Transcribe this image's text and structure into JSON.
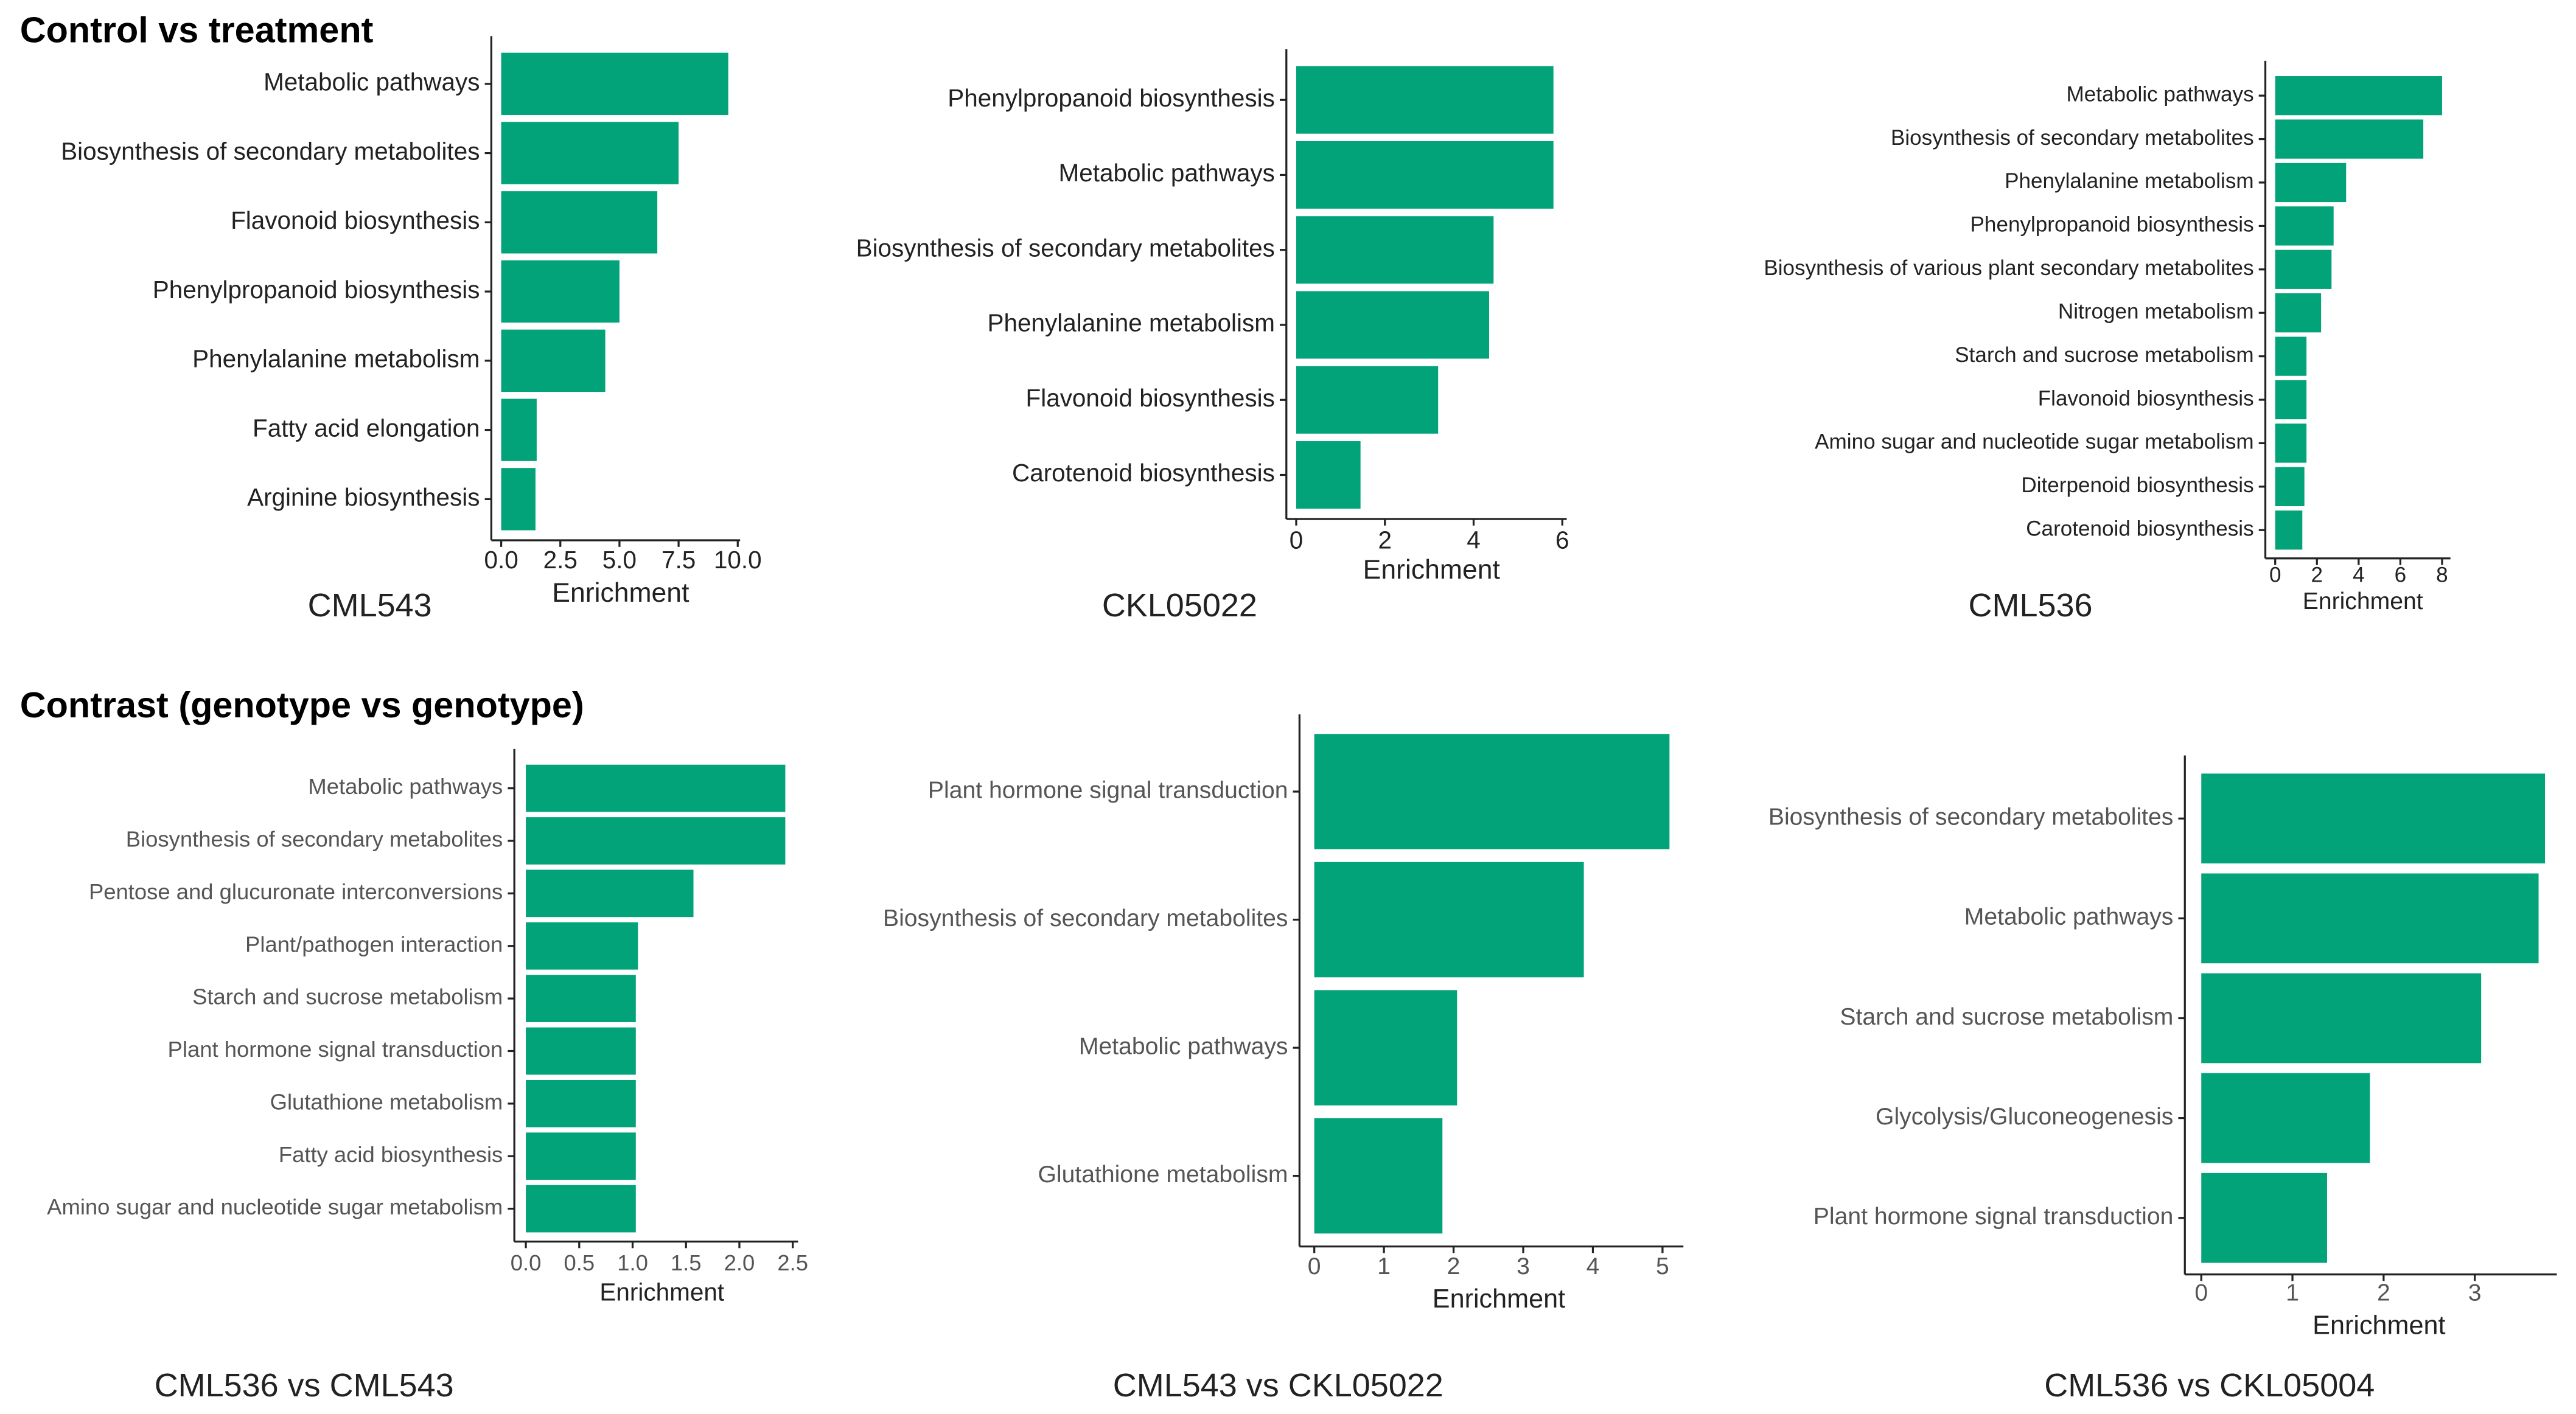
{
  "headings": [
    "Control vs treatment",
    "Contrast (genotype vs genotype)"
  ],
  "chart_data": [
    {
      "type": "bar",
      "orientation": "horizontal",
      "title": "CML543",
      "xlabel": "Enrichment",
      "color": "#03a37a",
      "categories": [
        "Metabolic pathways",
        "Biosynthesis of secondary metabolites",
        "Flavonoid biosynthesis",
        "Phenylpropanoid biosynthesis",
        "Phenylalanine metabolism",
        "Fatty acid elongation",
        "Arginine biosynthesis"
      ],
      "values": [
        9.6,
        7.5,
        6.6,
        5.0,
        4.4,
        1.5,
        1.45
      ],
      "xlim": [
        0,
        10.1
      ],
      "xticks": [
        {
          "value": 0,
          "label": "0.0"
        },
        2.5,
        {
          "value": 5,
          "label": "5.0"
        },
        7.5,
        {
          "value": 10,
          "label": "10.0"
        }
      ]
    },
    {
      "type": "bar",
      "orientation": "horizontal",
      "title": "CKL05022",
      "xlabel": "Enrichment",
      "color": "#03a37a",
      "categories": [
        "Phenylpropanoid biosynthesis",
        "Metabolic pathways",
        "Biosynthesis of secondary metabolites",
        "Phenylalanine metabolism",
        "Flavonoid biosynthesis",
        "Carotenoid biosynthesis"
      ],
      "values": [
        5.8,
        5.8,
        4.45,
        4.35,
        3.2,
        1.45
      ],
      "xlim": [
        0,
        6.1
      ],
      "xticks": [
        0,
        2,
        4,
        6
      ]
    },
    {
      "type": "bar",
      "orientation": "horizontal",
      "title": "CML536",
      "xlabel": "Enrichment",
      "color": "#03a37a",
      "categories": [
        "Metabolic pathways",
        "Biosynthesis of secondary metabolites",
        "Phenylalanine metabolism",
        "Phenylpropanoid biosynthesis",
        "Biosynthesis of various plant secondary metabolites",
        "Nitrogen metabolism",
        "Starch and sucrose metabolism",
        "Flavonoid biosynthesis",
        "Amino sugar and nucleotide sugar metabolism",
        "Diterpenoid biosynthesis",
        "Carotenoid biosynthesis"
      ],
      "values": [
        8.0,
        7.1,
        3.4,
        2.8,
        2.7,
        2.2,
        1.5,
        1.5,
        1.5,
        1.4,
        1.3
      ],
      "xlim": [
        0,
        8.4
      ],
      "xticks": [
        0,
        2,
        4,
        6,
        8
      ]
    },
    {
      "type": "bar",
      "orientation": "horizontal",
      "title": "CML536 vs CML543",
      "xlabel": "Enrichment",
      "color": "#03a37a",
      "categories": [
        "Metabolic pathways",
        "Biosynthesis of secondary metabolites",
        "Pentose and glucuronate interconversions",
        "Plant/pathogen interaction",
        "Starch and sucrose metabolism",
        "Plant hormone signal transduction",
        "Glutathione metabolism",
        "Fatty acid biosynthesis",
        "Amino sugar and nucleotide sugar metabolism"
      ],
      "values": [
        2.43,
        2.43,
        1.57,
        1.05,
        1.03,
        1.03,
        1.03,
        1.03,
        1.03
      ],
      "xlim": [
        0,
        2.55
      ],
      "xticks": [
        {
          "value": 0,
          "label": "0.0"
        },
        0.5,
        {
          "value": 1,
          "label": "1.0"
        },
        1.5,
        {
          "value": 2,
          "label": "2.0"
        },
        2.5
      ]
    },
    {
      "type": "bar",
      "orientation": "horizontal",
      "title": "CML543 vs CKL05022",
      "xlabel": "Enrichment",
      "color": "#03a37a",
      "categories": [
        "Plant hormone signal transduction",
        "Biosynthesis of secondary metabolites",
        "Metabolic pathways",
        "Glutathione metabolism"
      ],
      "values": [
        5.1,
        3.87,
        2.05,
        1.84
      ],
      "xlim": [
        0,
        5.3
      ],
      "xticks": [
        0,
        1,
        2,
        3,
        4,
        5
      ]
    },
    {
      "type": "bar",
      "orientation": "horizontal",
      "title": "CML536 vs CKL05004",
      "xlabel": "Enrichment",
      "color": "#03a37a",
      "categories": [
        "Biosynthesis of secondary metabolites",
        "Metabolic pathways",
        "Starch and sucrose metabolism",
        "Glycolysis/Gluconeogenesis",
        "Plant hormone signal transduction"
      ],
      "values": [
        3.77,
        3.7,
        3.07,
        1.85,
        1.38
      ],
      "xlim": [
        0,
        3.9
      ],
      "xticks": [
        0,
        1,
        2,
        3
      ]
    }
  ]
}
